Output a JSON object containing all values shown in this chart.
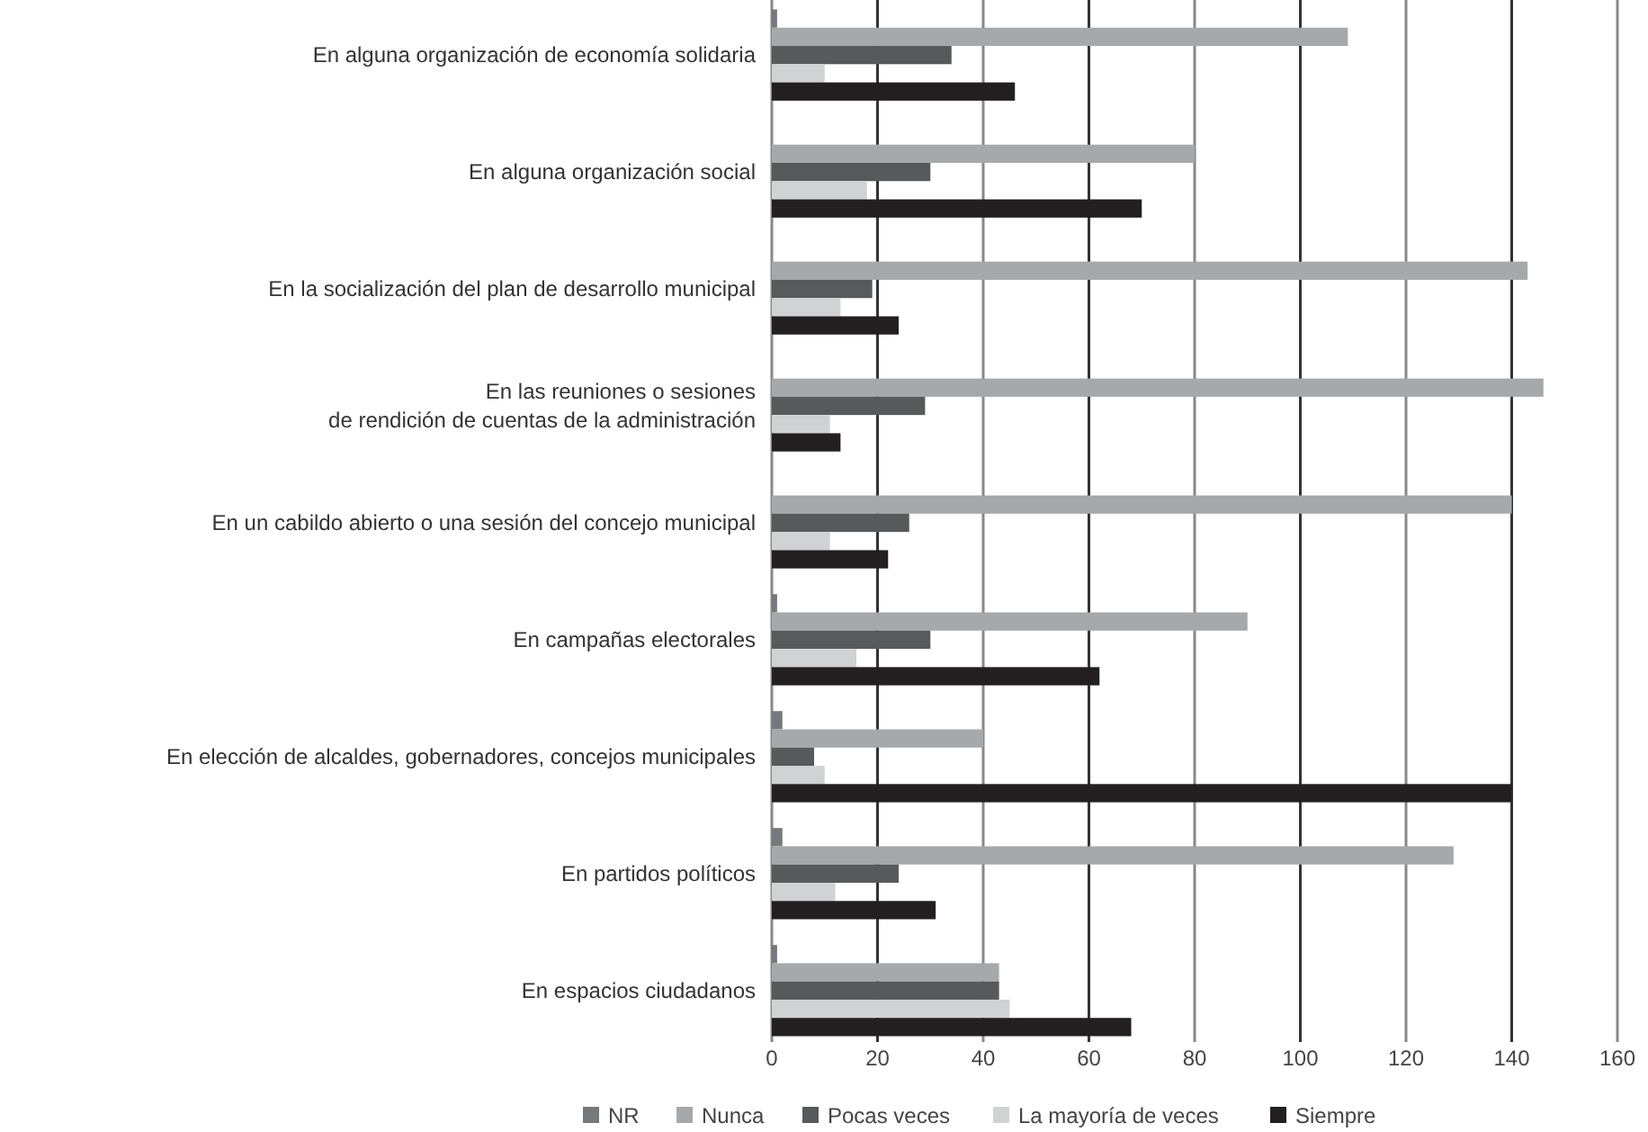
{
  "chart_data": {
    "type": "bar",
    "orientation": "horizontal",
    "categories": [
      "En alguna organización de economía solidaria",
      "En alguna organización social",
      "En la socialización del plan de desarrollo municipal",
      "En las reuniones o sesiones\nde rendición de cuentas de la administración",
      "En un cabildo abierto o una sesión del concejo municipal",
      "En campañas electorales",
      "En elección de alcaldes, gobernadores, concejos municipales",
      "En partidos políticos",
      "En espacios ciudadanos"
    ],
    "series": [
      {
        "name": "NR",
        "color": "#77787b",
        "values": [
          1,
          0,
          0,
          0,
          0,
          1,
          2,
          2,
          1
        ]
      },
      {
        "name": "Nunca",
        "color": "#a7a8ab",
        "values": [
          109,
          80,
          143,
          146,
          140,
          90,
          40,
          129,
          43
        ]
      },
      {
        "name": "Pocas veces",
        "color": "#58595b",
        "values": [
          34,
          30,
          19,
          29,
          26,
          30,
          8,
          24,
          43
        ]
      },
      {
        "name": "La mayoría de veces",
        "color": "#d1d2d4",
        "values": [
          10,
          18,
          13,
          11,
          11,
          16,
          10,
          12,
          45
        ]
      },
      {
        "name": "Siempre",
        "color": "#231f20",
        "values": [
          46,
          70,
          24,
          13,
          22,
          62,
          140,
          31,
          68
        ]
      }
    ],
    "xlim": [
      0,
      160
    ],
    "xticks": [
      0,
      20,
      40,
      60,
      80,
      100,
      120,
      140,
      160
    ],
    "grid": "x",
    "legend": "bottom"
  }
}
